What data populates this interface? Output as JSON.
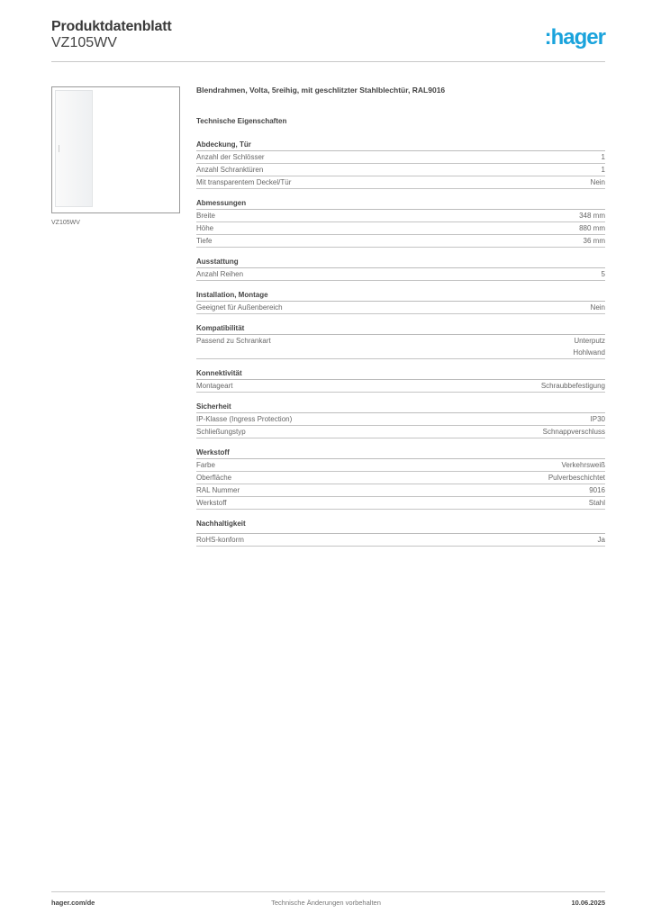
{
  "header": {
    "title": "Produktdatenblatt",
    "product_code": "VZ105WV",
    "logo_text": ":hager",
    "logo_color": "#1aa3dc"
  },
  "image_caption": "VZ105WV",
  "description": "Blendrahmen, Volta, 5reihig, mit geschlitzter Stahlblechtür, RAL9016",
  "tech_heading": "Technische Eigenschaften",
  "sections": [
    {
      "title": "Abdeckung, Tür",
      "rows": [
        {
          "label": "Anzahl der Schlösser",
          "value": "1"
        },
        {
          "label": "Anzahl Schranktüren",
          "value": "1"
        },
        {
          "label": "Mit transparentem Deckel/Tür",
          "value": "Nein"
        }
      ]
    },
    {
      "title": "Abmessungen",
      "rows": [
        {
          "label": "Breite",
          "value": "348 mm"
        },
        {
          "label": "Höhe",
          "value": "880 mm"
        },
        {
          "label": "Tiefe",
          "value": "36 mm"
        }
      ]
    },
    {
      "title": "Ausstattung",
      "rows": [
        {
          "label": "Anzahl Reihen",
          "value": "5"
        }
      ]
    },
    {
      "title": "Installation, Montage",
      "rows": [
        {
          "label": "Geeignet für Außenbereich",
          "value": "Nein"
        }
      ]
    },
    {
      "title": "Kompatibilität",
      "rows": [
        {
          "label": "Passend zu Schrankart",
          "value": "Unterputz\nHohlwand"
        }
      ]
    },
    {
      "title": "Konnektivität",
      "rows": [
        {
          "label": "Montageart",
          "value": "Schraubbefestigung"
        }
      ]
    },
    {
      "title": "Sicherheit",
      "rows": [
        {
          "label": "IP-Klasse (Ingress Protection)",
          "value": "IP30"
        },
        {
          "label": "Schließungstyp",
          "value": "Schnappverschluss"
        }
      ]
    },
    {
      "title": "Werkstoff",
      "rows": [
        {
          "label": "Farbe",
          "value": "Verkehrsweiß"
        },
        {
          "label": "Oberfläche",
          "value": "Pulverbeschichtet"
        },
        {
          "label": "RAL Nummer",
          "value": "9016"
        },
        {
          "label": "Werkstoff",
          "value": "Stahl"
        }
      ]
    },
    {
      "title": "Nachhaltigkeit",
      "rows": [
        {
          "label": "RoHS-konform",
          "value": "Ja"
        }
      ]
    }
  ],
  "footer": {
    "website": "hager.com/de",
    "notice": "Technische Änderungen vorbehalten",
    "date": "10.06.2025"
  }
}
